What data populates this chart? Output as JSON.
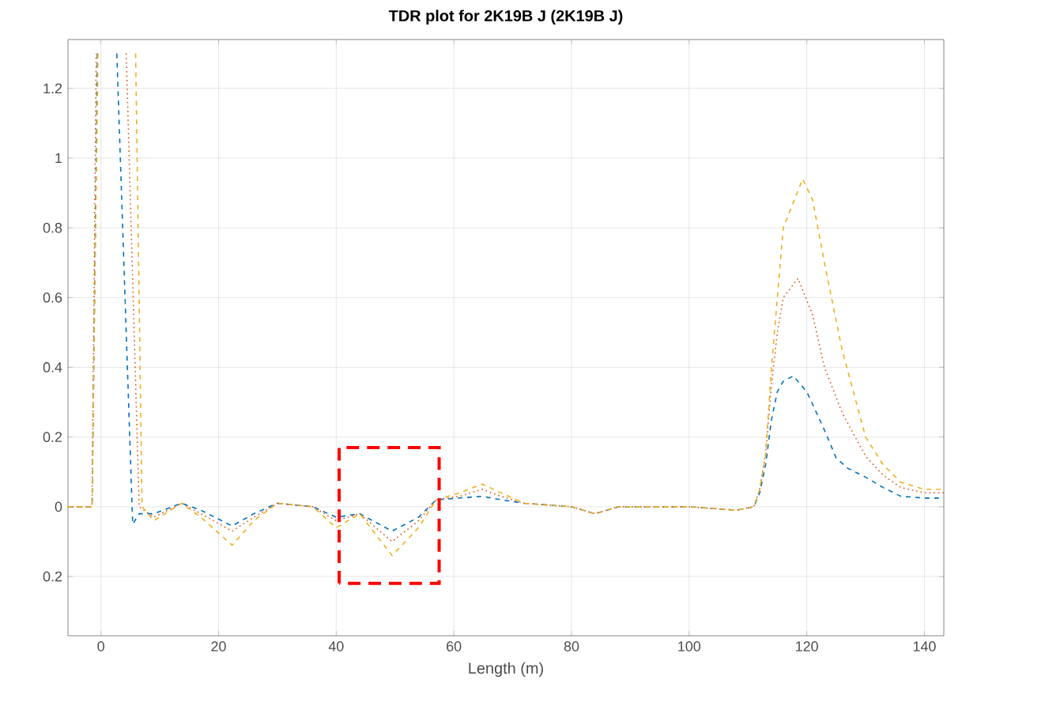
{
  "chart_data": {
    "type": "line",
    "title": "TDR plot for 2K19B J (2K19B J)",
    "xlabel": "Length (m)",
    "xlim": [
      -5.6,
      143.3
    ],
    "ylim": [
      -0.37,
      1.34
    ],
    "xticks": [
      0,
      20,
      40,
      60,
      80,
      100,
      120,
      140
    ],
    "yticks": [
      {
        "value": -0.2,
        "label": "0.2"
      },
      0,
      0.2,
      0.4,
      0.6,
      0.8,
      1,
      1.2
    ],
    "grid": true,
    "series": [
      {
        "color": "#0072bd",
        "line_style": "dashed",
        "x": [
          -5.6,
          -1.5,
          -0.6,
          1,
          2.7,
          5.4,
          6.5,
          9,
          13.7,
          17,
          22.3,
          26,
          30,
          36,
          40,
          44,
          49.5,
          54,
          57,
          61,
          64.8,
          68,
          72,
          80,
          84,
          88,
          100,
          108,
          111,
          112,
          113,
          114,
          115,
          116,
          117.7,
          120,
          123,
          125,
          127,
          130,
          133,
          136,
          140,
          143.3
        ],
        "values": [
          0,
          0,
          1.3,
          null,
          1.3,
          -0.05,
          -0.02,
          -0.02,
          0.01,
          -0.01,
          -0.055,
          -0.02,
          0.01,
          0,
          -0.03,
          -0.02,
          -0.07,
          -0.03,
          0.02,
          0.025,
          0.03,
          0.02,
          0.01,
          0,
          -0.02,
          0,
          0,
          -0.01,
          0,
          0.04,
          0.12,
          0.25,
          0.33,
          0.36,
          0.375,
          0.33,
          0.22,
          0.14,
          0.11,
          0.085,
          0.055,
          0.03,
          0.025,
          0.025
        ]
      },
      {
        "color": "#d95319",
        "line_style": "dotted",
        "x": [
          -5.6,
          -1.5,
          -0.8,
          2,
          4.3,
          6.5,
          9,
          13.7,
          17,
          22.3,
          26,
          30,
          36,
          40,
          44,
          49.5,
          54,
          57,
          61,
          64.8,
          68,
          72,
          80,
          84,
          88,
          100,
          108,
          111,
          112,
          113,
          114,
          115,
          116,
          118.5,
          121,
          123,
          126,
          130,
          133,
          136,
          140,
          143.3
        ],
        "values": [
          0,
          0,
          1.3,
          null,
          1.3,
          0,
          -0.03,
          0.01,
          -0.02,
          -0.07,
          -0.03,
          0.01,
          0,
          -0.04,
          -0.02,
          -0.1,
          -0.04,
          0.02,
          0.03,
          0.05,
          0.03,
          0.01,
          0,
          -0.02,
          0,
          0,
          -0.01,
          0,
          0.05,
          0.15,
          0.35,
          0.5,
          0.6,
          0.655,
          0.55,
          0.4,
          0.27,
          0.145,
          0.09,
          0.055,
          0.04,
          0.04
        ]
      },
      {
        "color": "#edb120",
        "line_style": "dashed",
        "x": [
          -5.6,
          -1.5,
          -0.5,
          3,
          5.9,
          7,
          9,
          13.7,
          17,
          22.3,
          26,
          30,
          36,
          40,
          44,
          49.5,
          54,
          57,
          61,
          64.8,
          68,
          72,
          80,
          84,
          88,
          100,
          108,
          111,
          112,
          113,
          114,
          115,
          116,
          119.3,
          121,
          123,
          126,
          130,
          133,
          136,
          140,
          143.3
        ],
        "values": [
          0,
          0,
          1.3,
          null,
          1.3,
          0,
          -0.04,
          0.01,
          -0.03,
          -0.11,
          -0.04,
          0.01,
          0,
          -0.06,
          -0.02,
          -0.14,
          -0.06,
          0.02,
          0.04,
          0.065,
          0.04,
          0.01,
          0,
          -0.02,
          0,
          0,
          -0.01,
          0,
          0.05,
          0.15,
          0.4,
          0.6,
          0.8,
          0.94,
          0.88,
          0.7,
          0.45,
          0.2,
          0.12,
          0.07,
          0.05,
          0.05
        ]
      }
    ]
  }
}
